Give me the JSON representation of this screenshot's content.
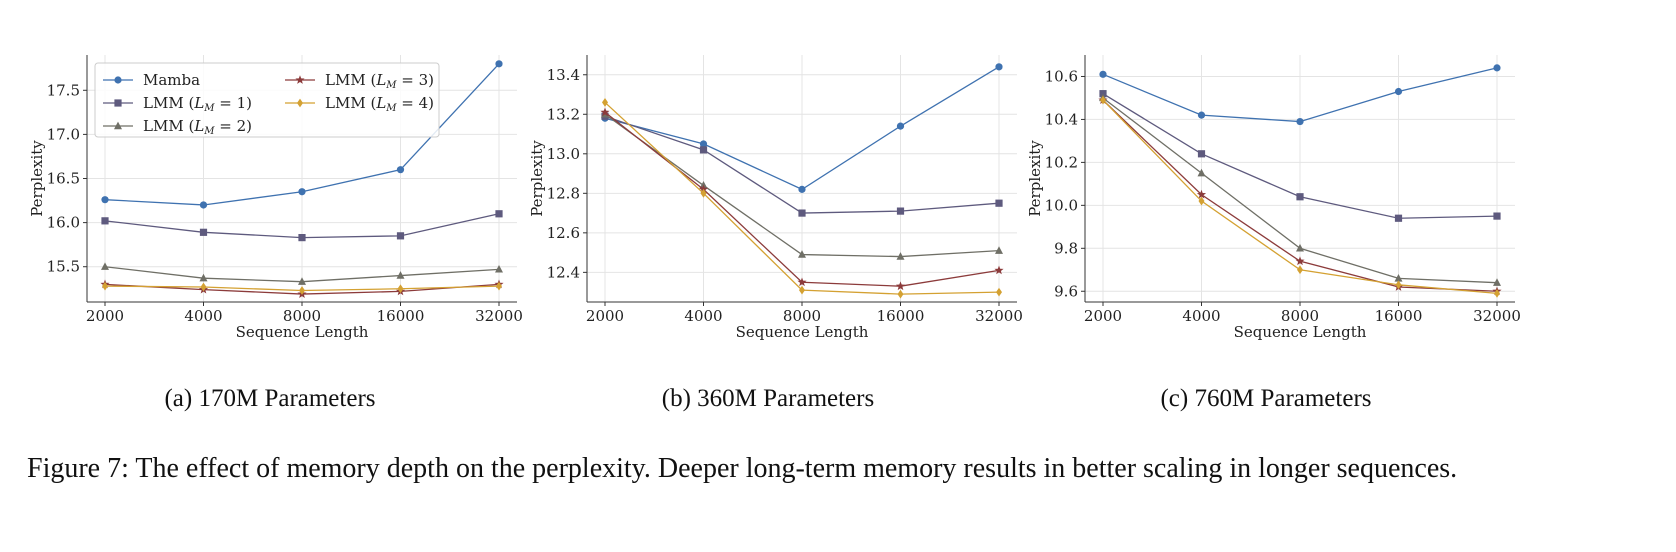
{
  "chart_data": [
    {
      "type": "line",
      "caption": "(a) 170M Parameters",
      "xlabel": "Sequence Length",
      "ylabel": "Perplexity",
      "x": [
        2000,
        4000,
        8000,
        16000,
        32000
      ],
      "x_tick_labels": [
        "2000",
        "4000",
        "8000",
        "16000",
        "32000"
      ],
      "x_scale": "log2",
      "ylim": [
        15.1,
        17.9
      ],
      "yticks": [
        "15.5",
        "16.0",
        "16.5",
        "17.0",
        "17.5"
      ],
      "legend": "top-left",
      "grid": true,
      "series": [
        {
          "name": "Mamba",
          "values": [
            16.26,
            16.2,
            16.35,
            16.6,
            17.8
          ]
        },
        {
          "name": "LMM (L_M = 1)",
          "values": [
            16.02,
            15.89,
            15.83,
            15.85,
            16.1
          ]
        },
        {
          "name": "LMM (L_M = 2)",
          "values": [
            15.5,
            15.37,
            15.33,
            15.4,
            15.47
          ]
        },
        {
          "name": "LMM (L_M = 3)",
          "values": [
            15.3,
            15.24,
            15.19,
            15.22,
            15.3
          ]
        },
        {
          "name": "LMM (L_M = 4)",
          "values": [
            15.28,
            15.27,
            15.23,
            15.25,
            15.28
          ]
        }
      ]
    },
    {
      "type": "line",
      "caption": "(b) 360M Parameters",
      "xlabel": "Sequence Length",
      "ylabel": "Perplexity",
      "x": [
        2000,
        4000,
        8000,
        16000,
        32000
      ],
      "x_tick_labels": [
        "2000",
        "4000",
        "8000",
        "16000",
        "32000"
      ],
      "x_scale": "log2",
      "ylim": [
        12.25,
        13.5
      ],
      "yticks": [
        "12.4",
        "12.6",
        "12.8",
        "13.0",
        "13.2",
        "13.4"
      ],
      "legend": "none",
      "grid": true,
      "series": [
        {
          "name": "Mamba",
          "values": [
            13.18,
            13.05,
            12.82,
            13.14,
            13.44
          ]
        },
        {
          "name": "LMM (L_M = 1)",
          "values": [
            13.19,
            13.02,
            12.7,
            12.71,
            12.75
          ]
        },
        {
          "name": "LMM (L_M = 2)",
          "values": [
            13.2,
            12.84,
            12.49,
            12.48,
            12.51
          ]
        },
        {
          "name": "LMM (L_M = 3)",
          "values": [
            13.21,
            12.82,
            12.35,
            12.33,
            12.41
          ]
        },
        {
          "name": "LMM (L_M = 4)",
          "values": [
            13.26,
            12.8,
            12.31,
            12.29,
            12.3
          ]
        }
      ]
    },
    {
      "type": "line",
      "caption": "(c) 760M Parameters",
      "xlabel": "Sequence Length",
      "ylabel": "Perplexity",
      "x": [
        2000,
        4000,
        8000,
        16000,
        32000
      ],
      "x_tick_labels": [
        "2000",
        "4000",
        "8000",
        "16000",
        "32000"
      ],
      "x_scale": "log2",
      "ylim": [
        9.55,
        10.7
      ],
      "yticks": [
        "9.6",
        "9.8",
        "10.0",
        "10.2",
        "10.4",
        "10.6"
      ],
      "legend": "none",
      "grid": true,
      "series": [
        {
          "name": "Mamba",
          "values": [
            10.61,
            10.42,
            10.39,
            10.53,
            10.64
          ]
        },
        {
          "name": "LMM (L_M = 1)",
          "values": [
            10.52,
            10.24,
            10.04,
            9.94,
            9.95
          ]
        },
        {
          "name": "LMM (L_M = 2)",
          "values": [
            10.5,
            10.15,
            9.8,
            9.66,
            9.64
          ]
        },
        {
          "name": "LMM (L_M = 3)",
          "values": [
            10.49,
            10.05,
            9.74,
            9.62,
            9.6
          ]
        },
        {
          "name": "LMM (L_M = 4)",
          "values": [
            10.49,
            10.02,
            9.7,
            9.63,
            9.59
          ]
        }
      ]
    }
  ],
  "series_styles": [
    {
      "color": "#3f72b0",
      "marker": "circle"
    },
    {
      "color": "#5e5a7e",
      "marker": "square"
    },
    {
      "color": "#6f6f66",
      "marker": "triangle"
    },
    {
      "color": "#8c3b3b",
      "marker": "star"
    },
    {
      "color": "#d4a132",
      "marker": "diamond"
    }
  ],
  "legend_entries": [
    {
      "prefix": "Mamba",
      "sub": "",
      "suffix": ""
    },
    {
      "prefix": "LMM (",
      "sub": "L",
      "subscript": "M",
      "suffix": " = 1)"
    },
    {
      "prefix": "LMM (",
      "sub": "L",
      "subscript": "M",
      "suffix": " = 2)"
    },
    {
      "prefix": "LMM (",
      "sub": "L",
      "subscript": "M",
      "suffix": " = 3)"
    },
    {
      "prefix": "LMM (",
      "sub": "L",
      "subscript": "M",
      "suffix": " = 4)"
    }
  ],
  "captions": {
    "a": "(a) 170M Parameters",
    "b": "(b) 360M Parameters",
    "c": "(c) 760M Parameters"
  },
  "figure_caption": "Figure 7: The effect of memory depth on the perplexity. Deeper long-term memory results in better scaling in longer sequences."
}
